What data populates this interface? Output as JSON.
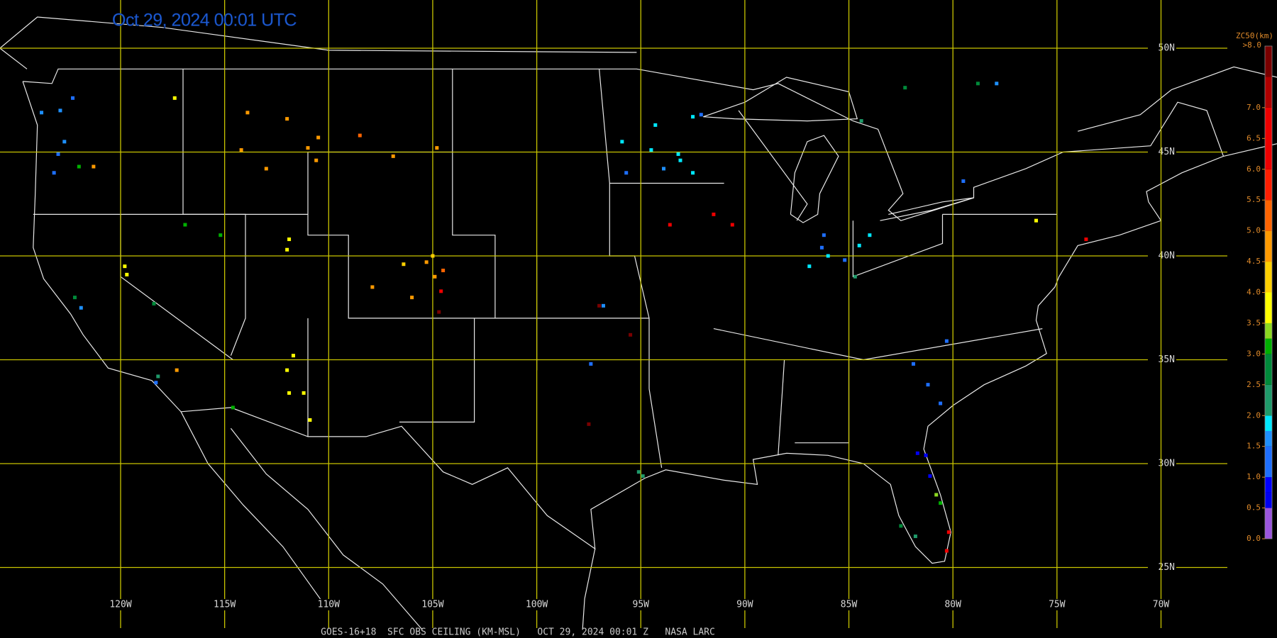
{
  "title": "Oct 29, 2024 00:01 UTC",
  "footer": "GOES-16+18  SFC OBS CEILING (KM-MSL)   OCT 29, 2024 00:01 Z   NASA LARC",
  "lat_lines": [
    {
      "value": 50,
      "label": "50N"
    },
    {
      "value": 45,
      "label": "45N"
    },
    {
      "value": 40,
      "label": "40N"
    },
    {
      "value": 35,
      "label": "35N"
    },
    {
      "value": 30,
      "label": "30N"
    },
    {
      "value": 25,
      "label": "25N"
    }
  ],
  "lon_lines": [
    {
      "value": -120,
      "label": "120W"
    },
    {
      "value": -115,
      "label": "115W"
    },
    {
      "value": -110,
      "label": "110W"
    },
    {
      "value": -105,
      "label": "105W"
    },
    {
      "value": -100,
      "label": "100W"
    },
    {
      "value": -95,
      "label": "95W"
    },
    {
      "value": -90,
      "label": "90W"
    },
    {
      "value": -85,
      "label": "85W"
    },
    {
      "value": -80,
      "label": "80W"
    },
    {
      "value": -75,
      "label": "75W"
    },
    {
      "value": -70,
      "label": "70W"
    }
  ],
  "colorbar": {
    "title": "ZC50(km)",
    "top_label": ">8.0",
    "range": [
      0,
      8
    ],
    "ticks": [
      {
        "value": 7,
        "label": "7.0"
      },
      {
        "value": 6.5,
        "label": "6.5"
      },
      {
        "value": 6,
        "label": "6.0"
      },
      {
        "value": 5.5,
        "label": "5.5"
      },
      {
        "value": 5,
        "label": "5.0"
      },
      {
        "value": 4.5,
        "label": "4.5"
      },
      {
        "value": 4,
        "label": "4.0"
      },
      {
        "value": 3.5,
        "label": "3.5"
      },
      {
        "value": 3,
        "label": "3.0"
      },
      {
        "value": 2.5,
        "label": "2.5"
      },
      {
        "value": 2,
        "label": "2.0"
      },
      {
        "value": 1.5,
        "label": "1.5"
      },
      {
        "value": 1,
        "label": "1.0"
      },
      {
        "value": 0.5,
        "label": "0.5"
      },
      {
        "value": 0,
        "label": "0.0"
      }
    ],
    "colors": [
      "#9a55dd",
      "#0000f0",
      "#0000ff",
      "#1e6fff",
      "#1e90ff",
      "#00e8ff",
      "#1f9a6a",
      "#008a3a",
      "#00b000",
      "#8cd820",
      "#ffff00",
      "#ffd000",
      "#ff9a00",
      "#ff6400",
      "#ff1e00",
      "#ee0000",
      "#b00000",
      "#7a0000"
    ],
    "color_steps": [
      0,
      0.5,
      0.75,
      1,
      1.5,
      1.75,
      2,
      2.5,
      3,
      3.25,
      3.5,
      4,
      4.5,
      5,
      5.5,
      6,
      7,
      7.5
    ]
  },
  "stations": [
    [
      -122.3,
      47.6,
      1.2
    ],
    [
      -122.9,
      47.0,
      1.7
    ],
    [
      -123.8,
      46.9,
      1.7
    ],
    [
      -122.7,
      45.5,
      1.7
    ],
    [
      -123.0,
      44.9,
      1.4
    ],
    [
      -123.2,
      44.0,
      1.4
    ],
    [
      -122.0,
      44.3,
      3.2
    ],
    [
      -121.3,
      44.3,
      4.5
    ],
    [
      -117.4,
      47.6,
      3.5
    ],
    [
      -113.9,
      46.9,
      4.7
    ],
    [
      -112.0,
      46.6,
      4.5
    ],
    [
      -110.5,
      45.7,
      4.5
    ],
    [
      -108.5,
      45.8,
      5.0
    ],
    [
      -111.0,
      45.2,
      4.6
    ],
    [
      -114.2,
      45.1,
      4.6
    ],
    [
      -113.0,
      44.2,
      4.6
    ],
    [
      -110.6,
      44.6,
      4.5
    ],
    [
      -106.9,
      44.8,
      4.8
    ],
    [
      -104.8,
      45.2,
      4.8
    ],
    [
      -111.9,
      40.8,
      3.6
    ],
    [
      -112.0,
      40.3,
      3.7
    ],
    [
      -105.0,
      40.0,
      4.4
    ],
    [
      -105.3,
      39.7,
      4.5
    ],
    [
      -104.5,
      39.3,
      5.3
    ],
    [
      -104.9,
      39.0,
      4.7
    ],
    [
      -106.4,
      39.6,
      4.3
    ],
    [
      -107.9,
      38.5,
      4.5
    ],
    [
      -106.0,
      38.0,
      4.6
    ],
    [
      -104.6,
      38.3,
      6.5
    ],
    [
      -104.7,
      37.3,
      7.5
    ],
    [
      -111.7,
      35.2,
      3.7
    ],
    [
      -112.0,
      34.5,
      3.6
    ],
    [
      -111.2,
      33.4,
      3.8
    ],
    [
      -111.9,
      33.4,
      3.9
    ],
    [
      -110.9,
      32.1,
      3.8
    ],
    [
      -114.6,
      32.7,
      3.2
    ],
    [
      -93.2,
      44.9,
      1.8
    ],
    [
      -94.5,
      45.1,
      1.8
    ],
    [
      -93.1,
      44.6,
      1.8
    ],
    [
      -95.9,
      45.5,
      1.8
    ],
    [
      -92.5,
      44.0,
      1.8
    ],
    [
      -94.3,
      46.3,
      1.8
    ],
    [
      -92.5,
      46.7,
      1.8
    ],
    [
      -93.9,
      44.2,
      1.6
    ],
    [
      -95.7,
      44.0,
      1.3
    ],
    [
      -92.1,
      46.8,
      1.4
    ],
    [
      -93.6,
      41.5,
      6.5
    ],
    [
      -90.6,
      41.5,
      6.5
    ],
    [
      -91.5,
      42.0,
      6.5
    ],
    [
      -86.3,
      40.4,
      1.3
    ],
    [
      -86.0,
      40.0,
      1.8
    ],
    [
      -86.2,
      41.0,
      1.3
    ],
    [
      -85.2,
      39.8,
      1.3
    ],
    [
      -86.9,
      39.5,
      1.8
    ],
    [
      -84.0,
      41.0,
      1.8
    ],
    [
      -84.5,
      40.5,
      1.8
    ],
    [
      -84.7,
      39.0,
      2.2
    ],
    [
      -81.9,
      34.8,
      1.3
    ],
    [
      -80.6,
      32.9,
      1.2
    ],
    [
      -81.2,
      33.8,
      1.3
    ],
    [
      -80.3,
      35.9,
      1.3
    ],
    [
      -81.7,
      30.5,
      0.7
    ],
    [
      -81.3,
      30.4,
      0.8
    ],
    [
      -81.1,
      29.4,
      0.8
    ],
    [
      -80.8,
      28.5,
      3.3
    ],
    [
      -80.2,
      26.7,
      6.5
    ],
    [
      -80.3,
      25.8,
      6.5
    ],
    [
      -80.6,
      28.1,
      3.2
    ],
    [
      -82.5,
      27.0,
      2.6
    ],
    [
      -81.8,
      26.5,
      2.3
    ],
    [
      -76.0,
      41.7,
      3.8
    ],
    [
      -79.5,
      43.6,
      1.3
    ],
    [
      -84.4,
      46.5,
      2.3
    ],
    [
      -82.3,
      48.1,
      2.6
    ],
    [
      -78.8,
      48.3,
      2.6
    ],
    [
      -77.9,
      48.3,
      1.7
    ],
    [
      -73.6,
      40.8,
      6.5
    ],
    [
      -96.8,
      37.6,
      1.7
    ],
    [
      -97.0,
      37.6,
      7.5
    ],
    [
      -97.4,
      34.8,
      1.0
    ],
    [
      -95.5,
      36.2,
      7.5
    ],
    [
      -97.5,
      31.9,
      7.5
    ],
    [
      -95.1,
      29.6,
      2.3
    ],
    [
      -94.9,
      29.4,
      2.3
    ],
    [
      -118.3,
      33.9,
      1.3
    ],
    [
      -118.2,
      34.2,
      2.3
    ],
    [
      -121.9,
      37.5,
      1.5
    ],
    [
      -122.2,
      38.0,
      2.7
    ],
    [
      -119.8,
      39.5,
      3.5
    ],
    [
      -119.7,
      39.1,
      3.6
    ],
    [
      -118.4,
      37.7,
      2.8
    ],
    [
      -117.3,
      34.5,
      4.6
    ],
    [
      -115.2,
      41.0,
      3.0
    ],
    [
      -116.9,
      41.5,
      3.1
    ]
  ]
}
